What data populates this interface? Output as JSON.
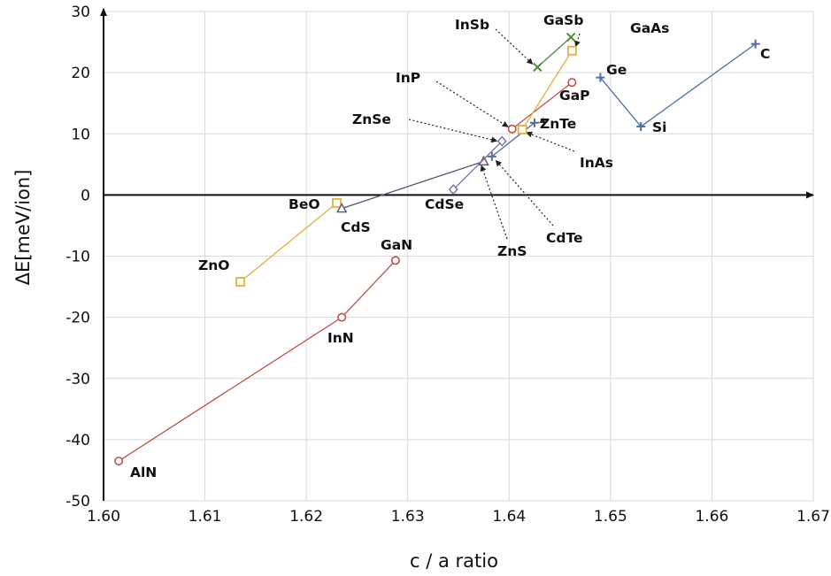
{
  "chart_data": {
    "type": "scatter",
    "title": "",
    "xlabel": "c / a ratio",
    "ylabel": "ΔE[meV/ion]",
    "xlim": [
      1.6,
      1.67
    ],
    "ylim": [
      -50,
      30
    ],
    "xticks": [
      "1.60",
      "1.61",
      "1.62",
      "1.63",
      "1.64",
      "1.65",
      "1.66",
      "1.67"
    ],
    "yticks": [
      "30",
      "20",
      "10",
      "0",
      "-10",
      "-20",
      "-30",
      "-40",
      "-50"
    ],
    "grid": true,
    "legend": "none",
    "colors": {
      "nitride": "#c0504d",
      "oxide": "#e0b040",
      "group_iv": "#4f6fa0",
      "sb": "#4a8a3a",
      "selenide": "#7e6aa8",
      "sulfide": "#555577",
      "axis": "#111111",
      "grid": "#d9d9d9"
    },
    "series": [
      {
        "marker": "circle",
        "color": "#c0504d",
        "points": [
          {
            "x": 1.6015,
            "y": -43.5,
            "label": "AlN"
          },
          {
            "x": 1.6235,
            "y": -20.0,
            "label": "InN"
          },
          {
            "x": 1.6288,
            "y": -10.7,
            "label": "GaN"
          }
        ]
      },
      {
        "marker": "square",
        "color": "#e0b040",
        "points": [
          {
            "x": 1.6135,
            "y": -14.2,
            "label": "ZnO"
          },
          {
            "x": 1.623,
            "y": -1.3,
            "label": "BeO"
          }
        ]
      },
      {
        "marker": "triangle",
        "color": "#555577",
        "points": [
          {
            "x": 1.6235,
            "y": -2.2,
            "label": "CdS"
          },
          {
            "x": 1.6375,
            "y": 5.5,
            "label": "ZnS"
          }
        ]
      },
      {
        "marker": "diamond",
        "color": "#7e6aa8",
        "points": [
          {
            "x": 1.6345,
            "y": 0.9,
            "label": "CdSe"
          },
          {
            "x": 1.6393,
            "y": 8.8,
            "label": "ZnSe"
          }
        ]
      },
      {
        "marker": "plus",
        "color": "#4f6fa0",
        "points": [
          {
            "x": 1.6383,
            "y": 6.3,
            "label": "CdTe"
          },
          {
            "x": 1.6425,
            "y": 11.8,
            "label": "ZnTe"
          }
        ]
      },
      {
        "marker": "circle",
        "color": "#c0504d",
        "points": [
          {
            "x": 1.6403,
            "y": 10.8,
            "label": "InP"
          },
          {
            "x": 1.6462,
            "y": 18.4,
            "label": "GaP"
          }
        ]
      },
      {
        "marker": "square",
        "color": "#e0b040",
        "points": [
          {
            "x": 1.6413,
            "y": 10.7,
            "label": "InAs"
          },
          {
            "x": 1.6462,
            "y": 23.6,
            "label": "GaAs"
          }
        ]
      },
      {
        "marker": "cross",
        "color": "#4a8a3a",
        "points": [
          {
            "x": 1.6428,
            "y": 20.9,
            "label": "InSb"
          },
          {
            "x": 1.6461,
            "y": 25.8,
            "label": "GaSb"
          }
        ]
      },
      {
        "marker": "plus",
        "color": "#4f6fa0",
        "points": [
          {
            "x": 1.649,
            "y": 19.2,
            "label": "Ge"
          },
          {
            "x": 1.653,
            "y": 11.2,
            "label": "Si"
          },
          {
            "x": 1.6643,
            "y": 24.7,
            "label": "C"
          }
        ]
      }
    ],
    "labels": [
      {
        "text": "AlN"
      },
      {
        "text": "InN"
      },
      {
        "text": "GaN"
      },
      {
        "text": "ZnO"
      },
      {
        "text": "BeO"
      },
      {
        "text": "CdS"
      },
      {
        "text": "CdSe"
      },
      {
        "text": "ZnS"
      },
      {
        "text": "CdTe"
      },
      {
        "text": "InAs"
      },
      {
        "text": "ZnTe"
      },
      {
        "text": "ZnSe"
      },
      {
        "text": "InP"
      },
      {
        "text": "GaP"
      },
      {
        "text": "InSb"
      },
      {
        "text": "GaSb"
      },
      {
        "text": "GaAs"
      },
      {
        "text": "Ge"
      },
      {
        "text": "Si"
      },
      {
        "text": "C"
      }
    ]
  }
}
